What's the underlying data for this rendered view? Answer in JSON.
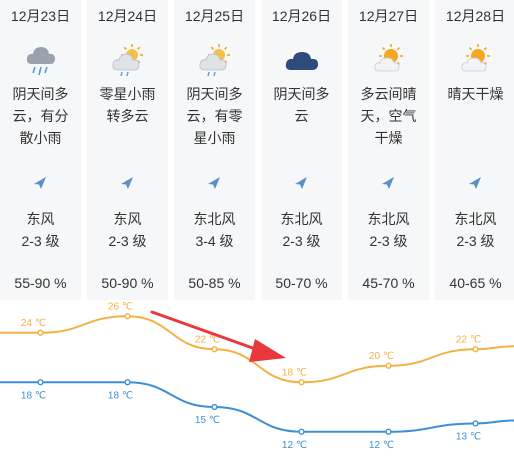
{
  "days": [
    {
      "date": "12月23日",
      "icon": "rain-cloud-icon",
      "desc": "阴天间多云，有分散小雨",
      "wind": "东风",
      "level": "2-3 级",
      "humidity": "55-90 %"
    },
    {
      "date": "12月24日",
      "icon": "cloud-sun-rain-icon",
      "desc": "零星小雨转多云",
      "wind": "东风",
      "level": "2-3 级",
      "humidity": "50-90 %"
    },
    {
      "date": "12月25日",
      "icon": "cloud-sun-rain-icon",
      "desc": "阴天间多云，有零星小雨",
      "wind": "东北风",
      "level": "3-4 级",
      "humidity": "50-85 %"
    },
    {
      "date": "12月26日",
      "icon": "overcast-cloud-icon",
      "desc": "阴天间多云",
      "wind": "东北风",
      "level": "2-3 级",
      "humidity": "50-70 %"
    },
    {
      "date": "12月27日",
      "icon": "partly-cloudy-icon",
      "desc": "多云间晴天，空气干燥",
      "wind": "东北风",
      "level": "2-3 级",
      "humidity": "45-70 %"
    },
    {
      "date": "12月28日",
      "icon": "partly-cloudy-icon",
      "desc": "晴天干燥",
      "wind": "东北风",
      "level": "2-3 级",
      "humidity": "40-65 %"
    }
  ],
  "chart_data": {
    "type": "line",
    "categories": [
      "12月23日",
      "12月24日",
      "12月25日",
      "12月26日",
      "12月27日",
      "12月28日"
    ],
    "series": [
      {
        "values": [
          24,
          26,
          22,
          18,
          20,
          22
        ],
        "labels": [
          "24 ℃",
          "26 ℃",
          "22 ℃",
          "18 ℃",
          "20 ℃",
          "22 ℃"
        ],
        "color": "#f5b041"
      },
      {
        "values": [
          18,
          18,
          15,
          12,
          12,
          13
        ],
        "labels": [
          "18 ℃",
          "18 ℃",
          "15 ℃",
          "12 ℃",
          "12 ℃",
          "13 ℃"
        ],
        "color": "#3d8fd6"
      }
    ],
    "annotation": "red-arrow"
  },
  "colors": {
    "column_bg": "#f6f7f9",
    "high_line": "#f5b041",
    "low_line": "#3d8fd6",
    "arrow": "#e8383d",
    "wind_arrow": "#5b8fc9"
  }
}
